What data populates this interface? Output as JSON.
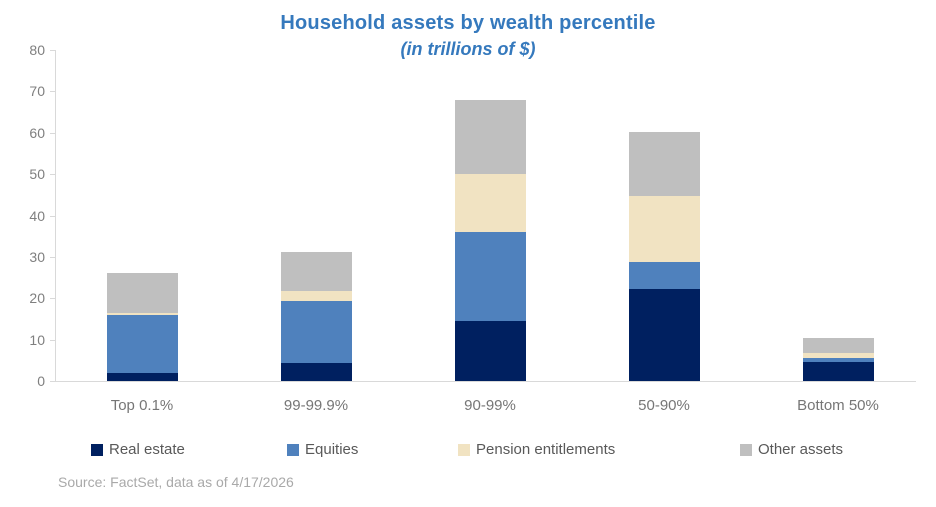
{
  "title": "Household assets by wealth percentile",
  "subtitle": "(in trillions of $)",
  "source": "Source: FactSet, data as of 4/17/2026",
  "chart_data": {
    "type": "bar",
    "stacked": true,
    "title": "Household assets by wealth percentile",
    "subtitle": "(in trillions of $)",
    "xlabel": "",
    "ylabel": "",
    "categories": [
      "Top 0.1%",
      "99-99.9%",
      "90-99%",
      "50-90%",
      "Bottom 50%"
    ],
    "series": [
      {
        "name": "Real estate",
        "color": "#002060",
        "values": [
          2.0,
          4.3,
          14.5,
          22.3,
          4.5
        ]
      },
      {
        "name": "Equities",
        "color": "#4f81bd",
        "values": [
          14.0,
          15.0,
          21.5,
          6.5,
          1.0
        ]
      },
      {
        "name": "Pension entitlements",
        "color": "#f1e3c2",
        "values": [
          0.5,
          2.5,
          14.0,
          16.0,
          1.3
        ]
      },
      {
        "name": "Other assets",
        "color": "#bfbfbf",
        "values": [
          9.5,
          9.3,
          18.0,
          15.5,
          3.6
        ]
      }
    ],
    "totals": [
      26.0,
      31.1,
      68.0,
      60.3,
      10.4
    ],
    "ylim": [
      0,
      80
    ],
    "y_ticks": [
      0,
      10,
      20,
      30,
      40,
      50,
      60,
      70,
      80
    ],
    "grid": false,
    "legend_position": "bottom"
  },
  "colors": {
    "title_text": "#3579bd",
    "axis_text": "#7f7f7f",
    "category_text": "#767676",
    "legend_text": "#595959",
    "source_text": "#a9a9a9",
    "axis_line": "#d9d9d9"
  }
}
